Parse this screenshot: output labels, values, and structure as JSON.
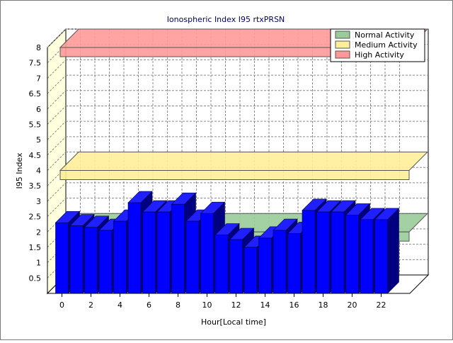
{
  "chart_data": {
    "type": "bar",
    "title": "Ionospheric Index I95 rtxPRSN",
    "xlabel": "Hour[Local time]",
    "ylabel": "I95 Index",
    "ylim": [
      0,
      8
    ],
    "yticks": [
      "0.5",
      "1",
      "1.5",
      "2",
      "2.5",
      "3",
      "3.5",
      "4",
      "4.5",
      "5",
      "5.5",
      "6",
      "6.5",
      "7",
      "7.5",
      "8"
    ],
    "xticks": [
      "0",
      "2",
      "4",
      "6",
      "8",
      "10",
      "12",
      "14",
      "16",
      "18",
      "20",
      "22"
    ],
    "grid": true,
    "legend_position": "top-right",
    "categories": [
      0,
      1,
      2,
      3,
      4,
      5,
      6,
      7,
      8,
      9,
      10,
      11,
      12,
      13,
      14,
      15,
      16,
      17,
      18,
      19,
      20,
      21,
      22
    ],
    "series": [
      {
        "color": "#0000ff",
        "values": [
          2.3,
          2.2,
          2.15,
          2.05,
          2.35,
          2.95,
          2.65,
          2.65,
          2.9,
          2.35,
          2.6,
          1.9,
          1.75,
          1.5,
          1.8,
          2.05,
          1.95,
          2.7,
          2.65,
          2.65,
          2.55,
          2.4,
          2.4
        ]
      }
    ],
    "bands": [
      {
        "name": "Normal Activity",
        "level": 2.0,
        "color": "#99cc99"
      },
      {
        "name": "Medium Activity",
        "level": 4.0,
        "color": "#ffee99"
      },
      {
        "name": "High Activity",
        "level": 8.0,
        "color": "#ff9999"
      }
    ]
  }
}
